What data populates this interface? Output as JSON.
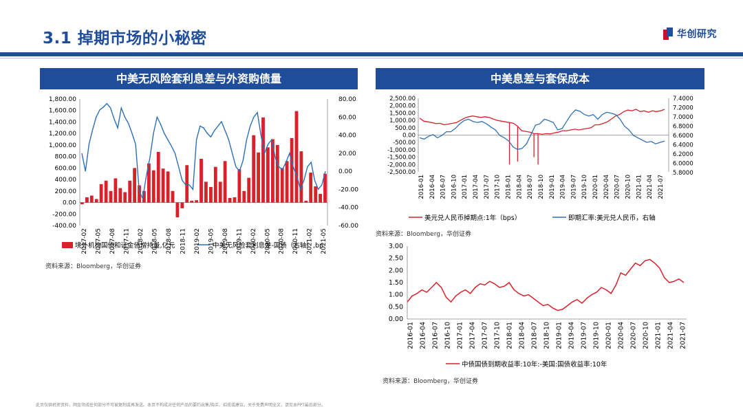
{
  "page": {
    "title": "3.1 掉期市场的小秘密",
    "logo_text": "华创研究",
    "footer": "此页仅供机密资料，网金须成任何部分不可被复制或再发送。本页不构成对任何产品的要约出售/购买、招揽或建议。关于免费声明全文，请见本PPT最后部分。"
  },
  "panels": {
    "left_title": "中美无风险套利息差与外资购债量",
    "right_title": "中美息差与套保成本",
    "left_source": "资料来源：Bloomberg，华创证券",
    "right_top_source": "资料来源：Bloomberg，华创证券",
    "right_bottom_source": "资料来源：Bloomberg，华创证券"
  },
  "colors": {
    "red": "#d7212b",
    "blue": "#2c6fb7",
    "navy": "#1f4d9a"
  },
  "chart_data": [
    {
      "id": "chart1",
      "type": "bar+line",
      "title": "中美无风险套利息差与外资购债量",
      "x_ticks": [
        "2017-02",
        "2017-05",
        "2017-08",
        "2017-11",
        "2018-02",
        "2018-05",
        "2018-08",
        "2018-11",
        "2019-02",
        "2019-05",
        "2019-08",
        "2019-11",
        "2020-02",
        "2020-05",
        "2020-08",
        "2020-11",
        "2021-02",
        "2021-05"
      ],
      "y_left_ticks": [
        "1,800.00",
        "1,600.00",
        "1,400.00",
        "1,200.00",
        "1,000.00",
        "800.00",
        "600.00",
        "400.00",
        "200.00",
        "0.00",
        "-200.00",
        "-400.00"
      ],
      "y_left_range": [
        -400,
        1800
      ],
      "y_right_ticks": [
        "80.00",
        "60.00",
        "40.00",
        "20.00",
        "0.00",
        "-20.00",
        "-40.00",
        "-60.00"
      ],
      "y_right_range": [
        -60,
        80
      ],
      "series": [
        {
          "name": "境外机构国债和证金债增持量,亿元",
          "axis": "left",
          "kind": "bar",
          "values": [
            -30,
            90,
            120,
            60,
            320,
            380,
            200,
            420,
            250,
            180,
            380,
            600,
            300,
            200,
            680,
            560,
            880,
            590,
            540,
            200,
            -260,
            -100,
            650,
            30,
            40,
            760,
            360,
            270,
            620,
            360,
            720,
            80,
            90,
            580,
            200,
            430,
            1170,
            870,
            1480,
            960,
            1100,
            1000,
            600,
            720,
            1120,
            1590,
            890,
            30,
            520,
            280,
            150,
            500
          ]
        },
        {
          "name": "中美无风险套利息差-国债（右轴）,bp",
          "axis": "right",
          "kind": "line",
          "values": [
            20,
            0,
            30,
            46,
            60,
            68,
            71,
            75,
            70,
            58,
            48,
            70,
            60,
            53,
            42,
            30,
            -22,
            -30,
            -5,
            15,
            42,
            60,
            52,
            42,
            35,
            28,
            20,
            5,
            -10,
            -15,
            -15,
            -20,
            35,
            50,
            48,
            42,
            38,
            45,
            50,
            55,
            45,
            35,
            20,
            5,
            0,
            12,
            35,
            50,
            60,
            65,
            40,
            20,
            30,
            35,
            15,
            5,
            2,
            10,
            20,
            5,
            -5,
            -20,
            -10,
            5,
            10,
            -10,
            -20,
            -15,
            0
          ]
        }
      ]
    },
    {
      "id": "chart2",
      "type": "line",
      "title": "中美息差与套保成本",
      "x_ticks": [
        "2016-01",
        "2016-04",
        "2016-07",
        "2016-10",
        "2017-01",
        "2017-04",
        "2017-07",
        "2017-10",
        "2018-01",
        "2018-04",
        "2018-07",
        "2018-10",
        "2019-01",
        "2019-04",
        "2019-07",
        "2019-10",
        "2020-01",
        "2020-04",
        "2020-07",
        "2020-10",
        "2021-01",
        "2021-04",
        "2021-07"
      ],
      "y_left_ticks": [
        "2,500.00",
        "2,000.00",
        "1,500.00",
        "1,000.00",
        "500.00",
        "0.00",
        "-500.00",
        "-1,000.00",
        "-1,500.00",
        "-2,000.00",
        "-2,500.00"
      ],
      "y_left_range": [
        -2500,
        2500
      ],
      "y_right_ticks": [
        "7.4000",
        "7.2000",
        "7.0000",
        "6.8000",
        "6.6000",
        "6.4000",
        "6.2000",
        "6.0000",
        "5.8000"
      ],
      "y_right_range": [
        5.8,
        7.4
      ],
      "series": [
        {
          "name": "美元兑人民币掉期点:1年（bps）",
          "axis": "left",
          "values": [
            1150,
            950,
            900,
            850,
            780,
            800,
            700,
            750,
            800,
            850,
            1000,
            1150,
            1250,
            1300,
            1250,
            1200,
            1250,
            1200,
            1100,
            1000,
            950,
            900,
            850,
            800,
            600,
            300,
            250,
            200,
            100,
            100,
            50,
            100,
            80,
            150,
            200,
            300,
            300,
            350,
            400,
            350,
            400,
            450,
            500,
            700,
            700,
            800,
            900,
            1100,
            1300,
            1400,
            1600,
            1700,
            1650,
            1750,
            1600,
            1650,
            1550,
            1650,
            1600,
            1650,
            1750
          ],
          "spikes": [
            {
              "index": 22,
              "value": -2000
            },
            {
              "index": 24,
              "value": -1800
            },
            {
              "index": 28,
              "value": -1500
            },
            {
              "index": 29,
              "value": -2000
            }
          ]
        },
        {
          "name": "即期汇率:美元兑人民币，右轴",
          "axis": "right",
          "values": [
            6.55,
            6.52,
            6.58,
            6.62,
            6.55,
            6.6,
            6.68,
            6.68,
            6.75,
            6.85,
            6.92,
            6.95,
            6.9,
            6.88,
            6.9,
            6.85,
            6.78,
            6.72,
            6.6,
            6.55,
            6.48,
            6.35,
            6.3,
            6.32,
            6.42,
            6.62,
            6.82,
            6.85,
            6.95,
            6.92,
            6.88,
            6.72,
            6.75,
            6.9,
            7.05,
            7.15,
            7.12,
            7.05,
            7.02,
            7.05,
            6.95,
            7.05,
            7.1,
            7.08,
            7.05,
            6.95,
            6.8,
            6.72,
            6.6,
            6.55,
            6.5,
            6.45,
            6.47,
            6.42,
            6.45,
            6.48
          ]
        }
      ]
    },
    {
      "id": "chart3",
      "type": "line",
      "title": "中债国债到期收益率:10年:-美国:国债收益率:10年",
      "x_ticks": [
        "2016-01",
        "2016-04",
        "2016-07",
        "2016-10",
        "2017-01",
        "2017-04",
        "2017-07",
        "2017-10",
        "2018-01",
        "2018-04",
        "2018-07",
        "2018-10",
        "2019-01",
        "2019-04",
        "2019-07",
        "2019-10",
        "2020-01",
        "2020-04",
        "2020-07",
        "2020-10",
        "2021-01",
        "2021-04",
        "2021-07"
      ],
      "y_ticks": [
        "3.00",
        "2.50",
        "2.00",
        "1.50",
        "1.00",
        "0.50",
        "0.00"
      ],
      "y_range": [
        0,
        3
      ],
      "series": [
        {
          "name": "中债国债到期收益率:10年:-美国:国债收益率:10年",
          "values": [
            0.7,
            0.95,
            1.05,
            1.2,
            1.1,
            1.3,
            1.5,
            1.3,
            0.9,
            0.7,
            0.95,
            1.1,
            1.2,
            1.05,
            1.3,
            1.45,
            1.4,
            1.55,
            1.45,
            1.3,
            1.35,
            1.5,
            1.2,
            1.05,
            0.95,
            1.0,
            0.85,
            0.7,
            0.55,
            0.6,
            0.45,
            0.35,
            0.4,
            0.55,
            0.7,
            0.8,
            0.65,
            0.85,
            1.0,
            1.1,
            1.3,
            1.2,
            1.05,
            1.4,
            1.9,
            1.8,
            2.05,
            2.3,
            2.2,
            2.4,
            2.45,
            2.3,
            2.1,
            1.7,
            1.5,
            1.55,
            1.65,
            1.5
          ]
        }
      ]
    }
  ]
}
